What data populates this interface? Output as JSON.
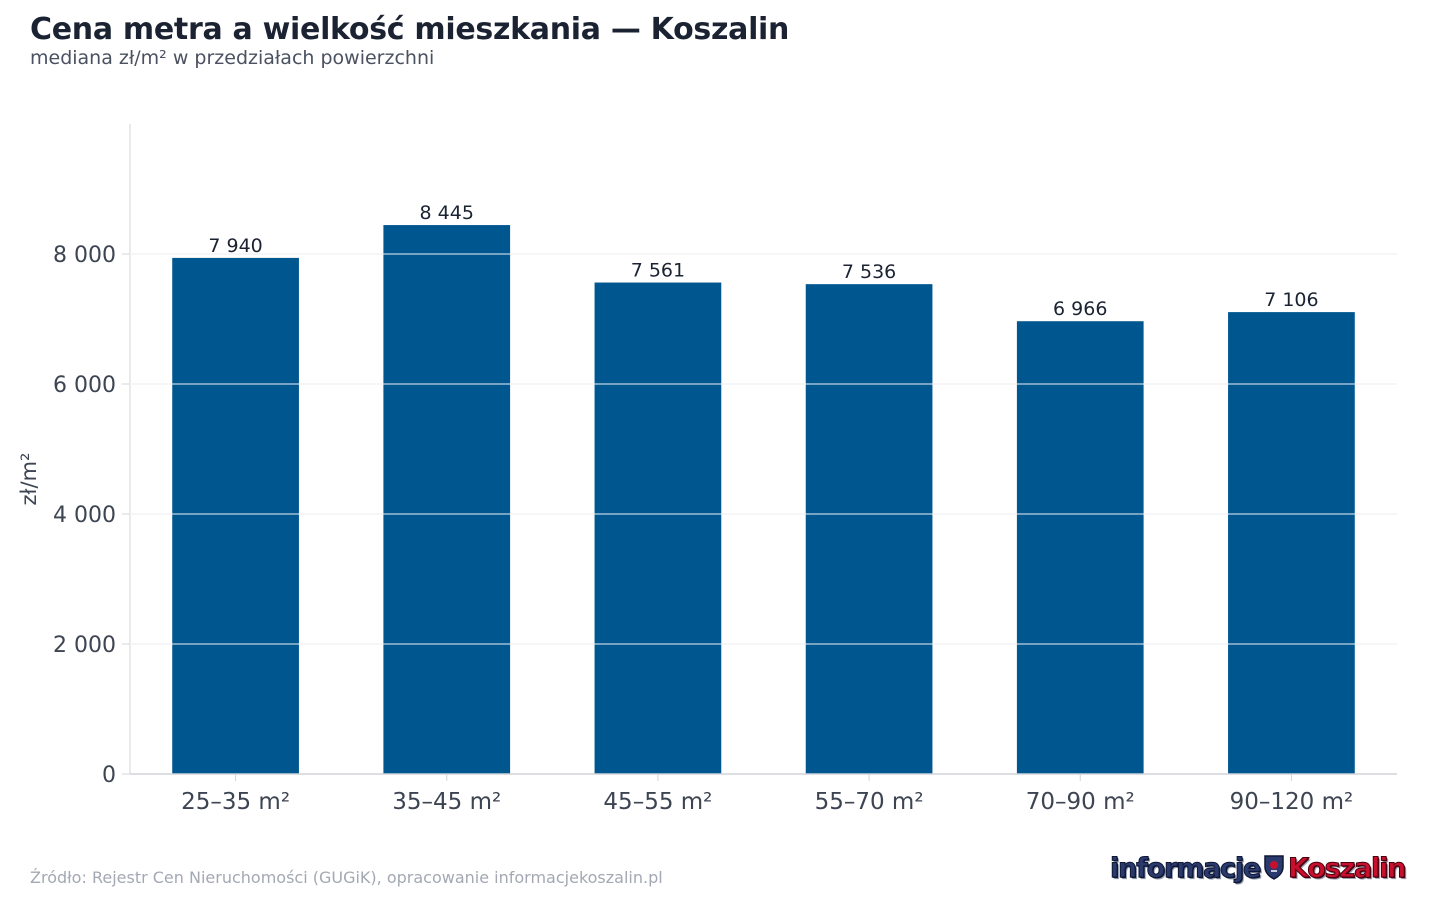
{
  "title": "Cena metra a wielkość mieszkania — Koszalin",
  "subtitle": "mediana zł/m² w przedziałach powierzchni",
  "source": "Źródło: Rejestr Cen Nieruchomości (GUGiK), opracowanie informacjekoszalin.pl",
  "logo": {
    "part1": "informacje",
    "part2": "Koszalin",
    "emblem_icon": "crest-icon"
  },
  "colors": {
    "bar": "#00568f",
    "grid": "#e3e6ea",
    "axis": "#d0d4da",
    "text": "#3d4452",
    "label": "#1b2333"
  },
  "chart_data": {
    "type": "bar",
    "categories": [
      "25–35 m²",
      "35–45 m²",
      "45–55 m²",
      "55–70 m²",
      "70–90 m²",
      "90–120 m²"
    ],
    "values": [
      7940,
      8445,
      7561,
      7536,
      6966,
      7106
    ],
    "data_labels": [
      "7 940",
      "8 445",
      "7 561",
      "7 536",
      "6 966",
      "7 106"
    ],
    "ylabel": "zł/m²",
    "xlabel": "",
    "ylim": [
      0,
      10000
    ],
    "yticks": [
      0,
      2000,
      4000,
      6000,
      8000
    ],
    "ytick_labels": [
      "0",
      "2 000",
      "4 000",
      "6 000",
      "8 000"
    ],
    "grid": true,
    "legend": "none"
  }
}
